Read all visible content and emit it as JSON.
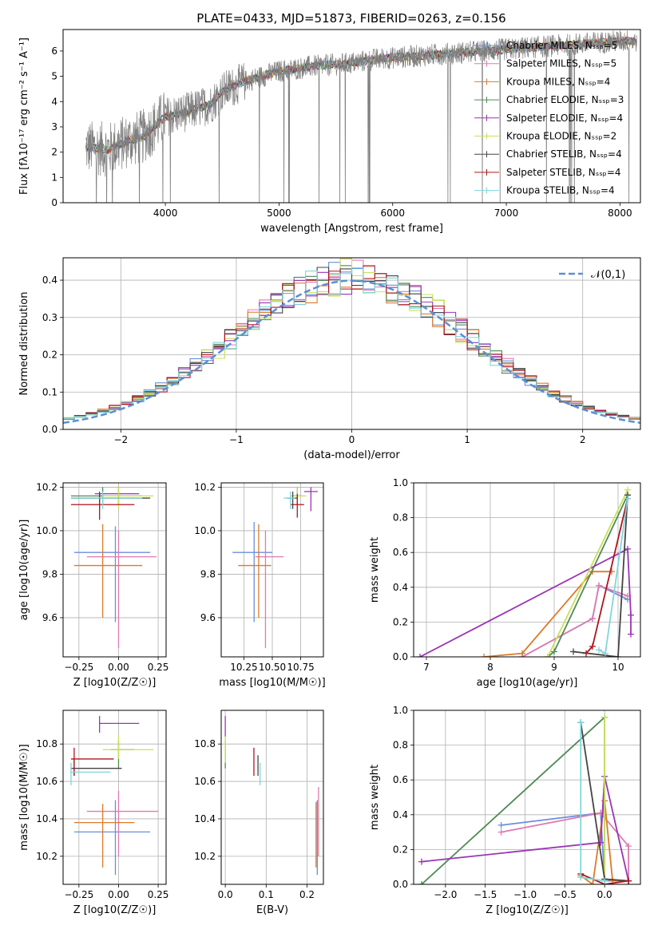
{
  "figure": {
    "title": "PLATE=0433, MJD=51873, FIBERID=0263, z=0.156"
  },
  "chart_data": [
    {
      "id": "spectrum",
      "type": "line",
      "xlabel": "wavelength [Angstrom, rest frame]",
      "ylabel": "Flux [fλ10⁻¹⁷ erg cm⁻² s⁻¹ A⁻¹]",
      "xlim": [
        3100,
        8180
      ],
      "ylim": [
        0,
        6.85
      ],
      "xticks": [
        4000,
        5000,
        6000,
        7000,
        8000
      ],
      "yticks": [
        0,
        1,
        2,
        3,
        4,
        5,
        6
      ],
      "grid": false,
      "legend_position": "right",
      "observed": {
        "color": "#808080",
        "x": [
          3300,
          3500,
          3600,
          3700,
          3800,
          3900,
          4000,
          4200,
          4400,
          4500,
          4700,
          5000,
          5300,
          5600,
          5900,
          6200,
          6500,
          6800,
          7100,
          7400,
          7700,
          8000,
          8150
        ],
        "y": [
          2.2,
          2.1,
          2.3,
          2.5,
          2.6,
          3.0,
          3.4,
          3.6,
          3.9,
          4.4,
          4.8,
          5.2,
          5.4,
          5.5,
          5.7,
          5.8,
          5.9,
          6.0,
          6.1,
          6.2,
          6.3,
          6.4,
          6.4
        ]
      },
      "series": [
        {
          "name": "Chabrier MILES, N_SSP=5",
          "color": "#6a8edc"
        },
        {
          "name": "Salpeter MILES, N_SSP=5",
          "color": "#e07ab0"
        },
        {
          "name": "Kroupa MILES, N_SSP=4",
          "color": "#dd7a2a"
        },
        {
          "name": "Chabrier ELODIE, N_SSP=3",
          "color": "#4e8a55"
        },
        {
          "name": "Salpeter ELODIE, N_SSP=4",
          "color": "#9b35b5"
        },
        {
          "name": "Kroupa ELODIE, N_SSP=2",
          "color": "#c8e05a"
        },
        {
          "name": "Chabrier STELIB, N_SSP=4",
          "color": "#444444"
        },
        {
          "name": "Salpeter STELIB, N_SSP=4",
          "color": "#b0141e"
        },
        {
          "name": "Kroupa STELIB, N_SSP=4",
          "color": "#7fd6dc"
        }
      ]
    },
    {
      "id": "residuals",
      "type": "line",
      "xlabel": "(data-model)/error",
      "ylabel": "Normed distribution",
      "xlim": [
        -2.5,
        2.5
      ],
      "ylim": [
        0,
        0.46
      ],
      "xticks": [
        -2,
        -1,
        0,
        1,
        2
      ],
      "yticks": [
        0.0,
        0.1,
        0.2,
        0.3,
        0.4
      ],
      "grid": true,
      "legend_position": "top-right",
      "legend_label": "𝒩(0,1)",
      "gaussian": {
        "mu": 0,
        "sigma": 1,
        "color": "#5b8fd6"
      }
    },
    {
      "id": "age_vs_Z",
      "type": "scatter",
      "xlabel": "Z [log10(Z/Z☉)]",
      "ylabel": "age  [log10(age/yr)]",
      "xlim": [
        -0.35,
        0.3
      ],
      "ylim": [
        9.42,
        10.22
      ],
      "xticks": [
        -0.25,
        0.0,
        0.25
      ],
      "yticks": [
        9.6,
        9.8,
        10.0,
        10.2
      ],
      "grid": true,
      "points": [
        {
          "x": -0.02,
          "y": 9.9,
          "xlo": -0.28,
          "xhi": 0.2,
          "ylo": 9.58,
          "yhi": 10.02,
          "color": "#6a8edc"
        },
        {
          "x": 0.0,
          "y": 9.88,
          "xlo": -0.2,
          "xhi": 0.24,
          "ylo": 9.46,
          "yhi": 10.0,
          "color": "#e07ab0"
        },
        {
          "x": -0.1,
          "y": 9.84,
          "xlo": -0.28,
          "xhi": 0.15,
          "ylo": 9.6,
          "yhi": 10.03,
          "color": "#dd7a2a"
        },
        {
          "x": -0.1,
          "y": 10.16,
          "xlo": -0.3,
          "xhi": 0.15,
          "ylo": 10.12,
          "yhi": 10.2,
          "color": "#4e8a55"
        },
        {
          "x": 0.0,
          "y": 10.17,
          "xlo": -0.15,
          "xhi": 0.13,
          "ylo": 10.12,
          "yhi": 10.2,
          "color": "#9b35b5"
        },
        {
          "x": 0.0,
          "y": 10.16,
          "xlo": -0.1,
          "xhi": 0.22,
          "ylo": 10.1,
          "yhi": 10.2,
          "color": "#c8e05a"
        },
        {
          "x": -0.12,
          "y": 10.15,
          "xlo": -0.3,
          "xhi": 0.2,
          "ylo": 10.1,
          "yhi": 10.18,
          "color": "#444444"
        },
        {
          "x": -0.12,
          "y": 10.12,
          "xlo": -0.3,
          "xhi": 0.1,
          "ylo": 10.05,
          "yhi": 10.17,
          "color": "#b0141e"
        },
        {
          "x": -0.1,
          "y": 10.15,
          "xlo": -0.3,
          "xhi": 0.15,
          "ylo": 10.1,
          "yhi": 10.18,
          "color": "#7fd6dc"
        }
      ]
    },
    {
      "id": "age_vs_mass",
      "type": "scatter",
      "xlabel": "mass [log10(M/M☉)]",
      "ylabel": "",
      "xlim": [
        10.05,
        10.95
      ],
      "ylim": [
        9.42,
        10.22
      ],
      "xticks": [
        10.25,
        10.5,
        10.75
      ],
      "yticks": [
        9.6,
        9.8,
        10.0,
        10.2
      ],
      "grid": true,
      "points": [
        {
          "x": 10.34,
          "y": 9.9,
          "xlo": 10.15,
          "xhi": 10.5,
          "ylo": 9.58,
          "yhi": 10.04,
          "color": "#6a8edc"
        },
        {
          "x": 10.44,
          "y": 9.88,
          "xlo": 10.35,
          "xhi": 10.6,
          "ylo": 9.46,
          "yhi": 10.0,
          "color": "#e07ab0"
        },
        {
          "x": 10.38,
          "y": 9.84,
          "xlo": 10.2,
          "xhi": 10.49,
          "ylo": 9.6,
          "yhi": 10.03,
          "color": "#dd7a2a"
        },
        {
          "x": 10.72,
          "y": 10.16,
          "xlo": 10.68,
          "xhi": 10.76,
          "ylo": 10.12,
          "yhi": 10.2,
          "color": "#4e8a55"
        },
        {
          "x": 10.84,
          "y": 10.18,
          "xlo": 10.78,
          "xhi": 10.9,
          "ylo": 10.09,
          "yhi": 10.2,
          "color": "#9b35b5"
        },
        {
          "x": 10.72,
          "y": 10.16,
          "xlo": 10.66,
          "xhi": 10.8,
          "ylo": 10.12,
          "yhi": 10.2,
          "color": "#c8e05a"
        },
        {
          "x": 10.68,
          "y": 10.15,
          "xlo": 10.63,
          "xhi": 10.72,
          "ylo": 10.1,
          "yhi": 10.18,
          "color": "#444444"
        },
        {
          "x": 10.72,
          "y": 10.12,
          "xlo": 10.66,
          "xhi": 10.78,
          "ylo": 10.06,
          "yhi": 10.17,
          "color": "#b0141e"
        },
        {
          "x": 10.66,
          "y": 10.15,
          "xlo": 10.6,
          "xhi": 10.7,
          "ylo": 10.1,
          "yhi": 10.18,
          "color": "#7fd6dc"
        }
      ]
    },
    {
      "id": "weight_vs_age",
      "type": "line",
      "xlabel": "age  [log10(age/yr)]",
      "ylabel": "mass weight",
      "xlim": [
        6.8,
        10.35
      ],
      "ylim": [
        0,
        1.0
      ],
      "xticks": [
        7,
        8,
        9,
        10
      ],
      "yticks": [
        0.0,
        0.2,
        0.4,
        0.6,
        0.8,
        1.0
      ],
      "grid": true,
      "series": [
        {
          "color": "#6a8edc",
          "x": [
            8.5,
            9.6,
            9.7,
            10.15
          ],
          "y": [
            0.0,
            0.22,
            0.41,
            0.33
          ]
        },
        {
          "color": "#e07ab0",
          "x": [
            8.5,
            9.6,
            9.7,
            10.15
          ],
          "y": [
            0.0,
            0.22,
            0.41,
            0.35
          ]
        },
        {
          "color": "#dd7a2a",
          "x": [
            7.9,
            8.5,
            9.6,
            9.9
          ],
          "y": [
            0.0,
            0.02,
            0.49,
            0.49
          ]
        },
        {
          "color": "#4e8a55",
          "x": [
            8.9,
            9.0,
            10.15
          ],
          "y": [
            0.0,
            0.03,
            0.93
          ]
        },
        {
          "color": "#9b35b5",
          "x": [
            6.9,
            10.15,
            10.2,
            10.2
          ],
          "y": [
            0.0,
            0.62,
            0.24,
            0.13
          ]
        },
        {
          "color": "#c8e05a",
          "x": [
            8.9,
            10.15
          ],
          "y": [
            0.0,
            0.96
          ]
        },
        {
          "color": "#444444",
          "x": [
            9.3,
            10.0,
            10.15
          ],
          "y": [
            0.03,
            0.0,
            0.93
          ]
        },
        {
          "color": "#b0141e",
          "x": [
            9.5,
            9.6,
            10.15
          ],
          "y": [
            0.02,
            0.06,
            0.91
          ]
        },
        {
          "color": "#7fd6dc",
          "x": [
            9.7,
            9.8,
            10.15
          ],
          "y": [
            0.04,
            0.02,
            0.91
          ]
        }
      ]
    },
    {
      "id": "mass_vs_Z",
      "type": "scatter",
      "xlabel": "Z [log10(Z/Z☉)]",
      "ylabel": "mass [log10(M/M☉)]",
      "xlim": [
        -0.35,
        0.3
      ],
      "ylim": [
        10.05,
        10.98
      ],
      "xticks": [
        -0.25,
        0.0,
        0.25
      ],
      "yticks": [
        10.2,
        10.4,
        10.6,
        10.8
      ],
      "grid": true,
      "points": [
        {
          "x": -0.02,
          "y": 10.33,
          "xlo": -0.28,
          "xhi": 0.2,
          "ylo": 10.1,
          "yhi": 10.5,
          "color": "#6a8edc"
        },
        {
          "x": 0.0,
          "y": 10.44,
          "xlo": -0.2,
          "xhi": 0.25,
          "ylo": 10.2,
          "yhi": 10.55,
          "color": "#e07ab0"
        },
        {
          "x": -0.1,
          "y": 10.38,
          "xlo": -0.28,
          "xhi": 0.1,
          "ylo": 10.14,
          "yhi": 10.48,
          "color": "#dd7a2a"
        },
        {
          "x": 0.0,
          "y": 10.77,
          "xlo": -0.05,
          "xhi": 0.1,
          "ylo": 10.67,
          "yhi": 10.82,
          "color": "#4e8a55"
        },
        {
          "x": -0.12,
          "y": 10.91,
          "xlo": -0.12,
          "xhi": 0.13,
          "ylo": 10.86,
          "yhi": 10.95,
          "color": "#9b35b5"
        },
        {
          "x": 0.0,
          "y": 10.77,
          "xlo": -0.1,
          "xhi": 0.22,
          "ylo": 10.72,
          "yhi": 10.85,
          "color": "#c8e05a"
        },
        {
          "x": -0.28,
          "y": 10.67,
          "xlo": -0.3,
          "xhi": 0.02,
          "ylo": 10.63,
          "yhi": 10.72,
          "color": "#444444"
        },
        {
          "x": -0.28,
          "y": 10.72,
          "xlo": -0.3,
          "xhi": -0.03,
          "ylo": 10.63,
          "yhi": 10.78,
          "color": "#b0141e"
        },
        {
          "x": -0.3,
          "y": 10.65,
          "xlo": -0.3,
          "xhi": -0.05,
          "ylo": 10.58,
          "yhi": 10.7,
          "color": "#7fd6dc"
        }
      ]
    },
    {
      "id": "mass_vs_ebv",
      "type": "scatter",
      "xlabel": "E(B-V)",
      "ylabel": "",
      "xlim": [
        -0.01,
        0.24
      ],
      "ylim": [
        10.05,
        10.98
      ],
      "xticks": [
        0.0,
        0.1,
        0.2
      ],
      "yticks": [
        10.2,
        10.4,
        10.6,
        10.8
      ],
      "grid": true,
      "points": [
        {
          "x": 0.225,
          "y": 10.33,
          "ylo": 10.1,
          "yhi": 10.5,
          "color": "#6a8edc"
        },
        {
          "x": 0.228,
          "y": 10.44,
          "ylo": 10.2,
          "yhi": 10.57,
          "color": "#e07ab0"
        },
        {
          "x": 0.222,
          "y": 10.38,
          "ylo": 10.14,
          "yhi": 10.49,
          "color": "#dd7a2a"
        },
        {
          "x": 0.0,
          "y": 10.77,
          "ylo": 10.67,
          "yhi": 10.82,
          "color": "#4e8a55"
        },
        {
          "x": 0.0,
          "y": 10.9,
          "ylo": 10.84,
          "yhi": 10.95,
          "color": "#9b35b5"
        },
        {
          "x": 0.0,
          "y": 10.77,
          "ylo": 10.7,
          "yhi": 10.84,
          "color": "#c8e05a"
        },
        {
          "x": 0.08,
          "y": 10.68,
          "ylo": 10.63,
          "yhi": 10.74,
          "color": "#444444"
        },
        {
          "x": 0.07,
          "y": 10.72,
          "ylo": 10.63,
          "yhi": 10.78,
          "color": "#b0141e"
        },
        {
          "x": 0.085,
          "y": 10.64,
          "ylo": 10.58,
          "yhi": 10.7,
          "color": "#7fd6dc"
        }
      ]
    },
    {
      "id": "weight_vs_Z",
      "type": "line",
      "xlabel": "Z [log10(Z/Z☉)]",
      "ylabel": "mass weight",
      "xlim": [
        -2.4,
        0.45
      ],
      "ylim": [
        0,
        1.0
      ],
      "xticks": [
        -2.0,
        -1.5,
        -1.0,
        -0.5,
        0.0
      ],
      "yticks": [
        0.0,
        0.2,
        0.4,
        0.6,
        0.8,
        1.0
      ],
      "grid": true,
      "series": [
        {
          "color": "#6a8edc",
          "x": [
            -1.3,
            -0.05,
            0.0,
            0.3
          ],
          "y": [
            0.34,
            0.41,
            0.02,
            0.02
          ]
        },
        {
          "color": "#e07ab0",
          "x": [
            -1.3,
            -0.05,
            0.3,
            0.3
          ],
          "y": [
            0.3,
            0.41,
            0.22,
            0.02
          ]
        },
        {
          "color": "#dd7a2a",
          "x": [
            -0.3,
            -0.15,
            0.0,
            0.1,
            0.3
          ],
          "y": [
            0.05,
            0.0,
            0.48,
            0.02,
            0.02
          ]
        },
        {
          "color": "#4e8a55",
          "x": [
            -2.3,
            0.0,
            0.0
          ],
          "y": [
            0.0,
            0.96,
            0.02
          ]
        },
        {
          "color": "#9b35b5",
          "x": [
            -2.3,
            -0.05,
            0.0,
            0.3
          ],
          "y": [
            0.13,
            0.24,
            0.62,
            0.02
          ]
        },
        {
          "color": "#c8e05a",
          "x": [
            0.0,
            0.0
          ],
          "y": [
            0.0,
            0.96
          ]
        },
        {
          "color": "#444444",
          "x": [
            -0.3,
            0.0,
            0.3
          ],
          "y": [
            0.93,
            0.03,
            0.02
          ]
        },
        {
          "color": "#b0141e",
          "x": [
            -0.3,
            0.0,
            0.3
          ],
          "y": [
            0.06,
            0.0,
            0.02
          ]
        },
        {
          "color": "#7fd6dc",
          "x": [
            -0.3,
            -0.3,
            0.0
          ],
          "y": [
            0.93,
            0.04,
            0.02
          ]
        }
      ]
    }
  ]
}
